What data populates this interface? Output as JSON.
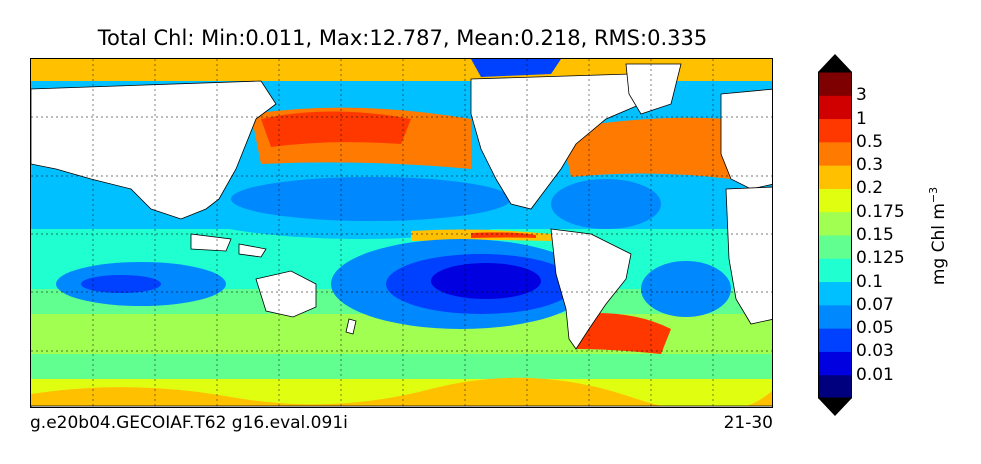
{
  "title": "Total Chl: Min:0.011, Max:12.787, Mean:0.218, RMS:0.335",
  "footer": {
    "left": "g.e20b04.GECOIAF.T62 g16.eval.091i",
    "right": "21-30"
  },
  "colorbar": {
    "unit_main": "mg Chl m",
    "unit_exp": "−3",
    "levels": [
      {
        "label": "0.01",
        "color": "#00007f"
      },
      {
        "label": "0.03",
        "color": "#0000e0"
      },
      {
        "label": "0.05",
        "color": "#0040ff"
      },
      {
        "label": "0.07",
        "color": "#0088ff"
      },
      {
        "label": "0.1",
        "color": "#00c0ff"
      },
      {
        "label": "0.125",
        "color": "#20ffd0"
      },
      {
        "label": "0.15",
        "color": "#60ff90"
      },
      {
        "label": "0.175",
        "color": "#a0ff50"
      },
      {
        "label": "0.2",
        "color": "#e0ff10"
      },
      {
        "label": "0.3",
        "color": "#ffc000"
      },
      {
        "label": "0.5",
        "color": "#ff7a00"
      },
      {
        "label": "1",
        "color": "#ff3800"
      },
      {
        "label": "3",
        "color": "#d00000"
      }
    ],
    "top_color": "#7f0000",
    "bottom_color": "#00007f"
  }
}
